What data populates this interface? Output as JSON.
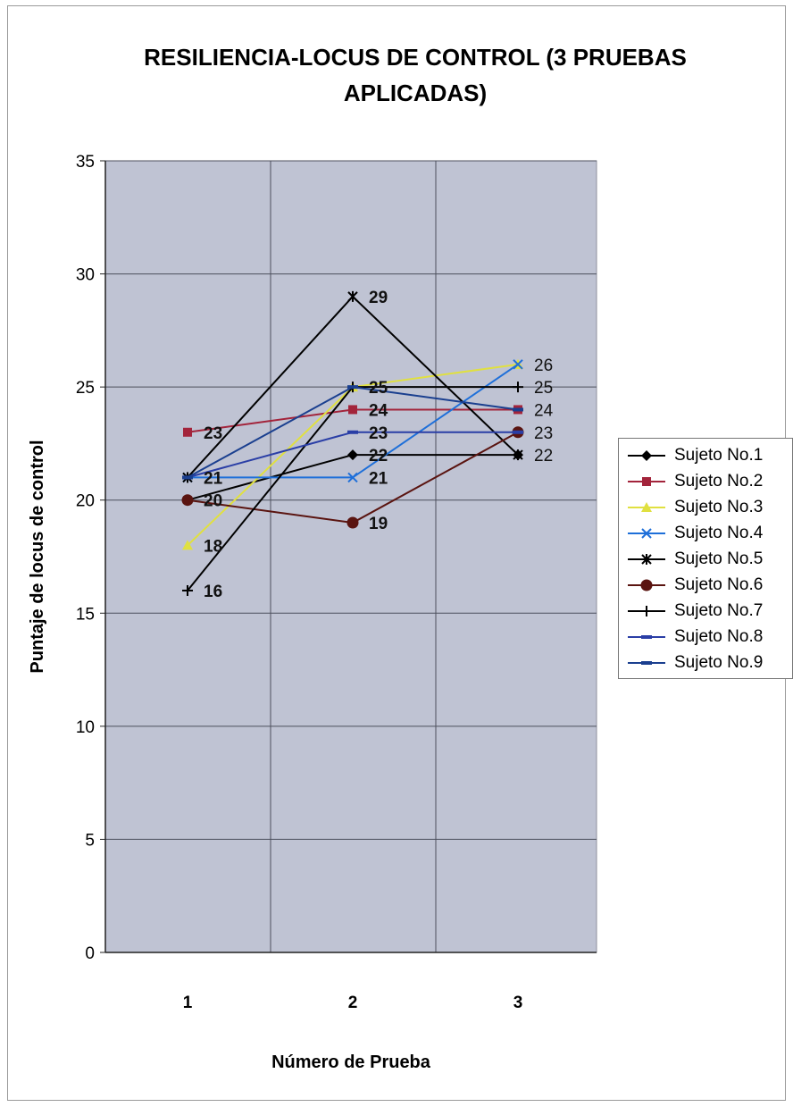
{
  "chart_data": {
    "type": "line",
    "title_lines": [
      "RESILIENCIA-LOCUS DE CONTROL   (3 PRUEBAS",
      "APLICADAS)"
    ],
    "xlabel": "Número de Prueba",
    "ylabel": "Puntaje de locus de control",
    "categories": [
      "1",
      "2",
      "3"
    ],
    "ylim": [
      0,
      35
    ],
    "yticks": [
      0,
      5,
      10,
      15,
      20,
      25,
      30,
      35
    ],
    "grid": true,
    "legend_position": "right",
    "plot_background": "#bfc3d3",
    "series": [
      {
        "name": "Sujeto No.1",
        "values": [
          20,
          22,
          22
        ],
        "color": "#000000",
        "marker": "diamond"
      },
      {
        "name": "Sujeto No.2",
        "values": [
          23,
          24,
          24
        ],
        "color": "#a3243b",
        "marker": "square"
      },
      {
        "name": "Sujeto No.3",
        "values": [
          18,
          25,
          26
        ],
        "color": "#e0e040",
        "marker": "triangle"
      },
      {
        "name": "Sujeto No.4",
        "values": [
          21,
          21,
          26
        ],
        "color": "#1e6fd9",
        "marker": "x"
      },
      {
        "name": "Sujeto No.5",
        "values": [
          21,
          29,
          22
        ],
        "color": "#000000",
        "marker": "star"
      },
      {
        "name": "Sujeto No.6",
        "values": [
          20,
          19,
          23
        ],
        "color": "#5a1410",
        "marker": "circle"
      },
      {
        "name": "Sujeto No.7",
        "values": [
          16,
          25,
          25
        ],
        "color": "#000000",
        "marker": "plus"
      },
      {
        "name": "Sujeto No.8",
        "values": [
          21,
          23,
          23
        ],
        "color": "#2a3ea6",
        "marker": "dash"
      },
      {
        "name": "Sujeto No.9",
        "values": [
          21,
          25,
          24
        ],
        "color": "#1a3f8f",
        "marker": "dash"
      }
    ],
    "data_labels": [
      {
        "series": "Sujeto No.6",
        "x": "1",
        "y": 20,
        "text": "20"
      },
      {
        "series": "Sujeto No.2",
        "x": "1",
        "y": 23,
        "text": "23"
      },
      {
        "series": "Sujeto No.8",
        "x": "1",
        "y": 21,
        "text": "21"
      },
      {
        "series": "Sujeto No.3",
        "x": "1",
        "y": 18,
        "text": "18"
      },
      {
        "series": "Sujeto No.7",
        "x": "1",
        "y": 16,
        "text": "16"
      },
      {
        "series": "Sujeto No.5",
        "x": "2",
        "y": 29,
        "text": "29"
      },
      {
        "series": "Sujeto No.3",
        "x": "2",
        "y": 25,
        "text": "25"
      },
      {
        "series": "Sujeto No.2",
        "x": "2",
        "y": 24,
        "text": "24"
      },
      {
        "series": "Sujeto No.8",
        "x": "2",
        "y": 23,
        "text": "23"
      },
      {
        "series": "Sujeto No.1",
        "x": "2",
        "y": 22,
        "text": "22"
      },
      {
        "series": "Sujeto No.4",
        "x": "2",
        "y": 21,
        "text": "21"
      },
      {
        "series": "Sujeto No.6",
        "x": "2",
        "y": 19,
        "text": "19"
      },
      {
        "series": "Sujeto No.4",
        "x": "3",
        "y": 26,
        "text": "26"
      },
      {
        "series": "Sujeto No.7",
        "x": "3",
        "y": 25,
        "text": "25"
      },
      {
        "series": "Sujeto No.9",
        "x": "3",
        "y": 24,
        "text": "24"
      },
      {
        "series": "Sujeto No.6",
        "x": "3",
        "y": 23,
        "text": "23"
      },
      {
        "series": "Sujeto No.1",
        "x": "3",
        "y": 22,
        "text": "22"
      }
    ]
  }
}
